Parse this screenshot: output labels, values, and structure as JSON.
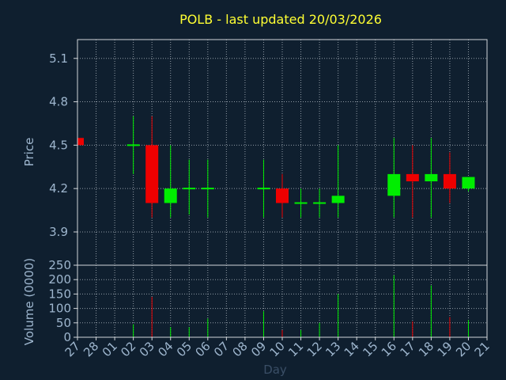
{
  "chart_data": {
    "type": "candlestick",
    "title": "POLB - last updated 20/03/2026",
    "xlabel": "Day",
    "price_panel": {
      "ylabel": "Price",
      "ylim": [
        3.67,
        5.23
      ],
      "yticks": [
        "5.1",
        "4.8",
        "4.5",
        "4.2",
        "3.9"
      ],
      "ytick_values": [
        5.1,
        4.8,
        4.5,
        4.2,
        3.9
      ]
    },
    "volume_panel": {
      "ylabel": "Volume (0000)",
      "ylim": [
        0,
        250
      ],
      "yticks": [
        "250",
        "200",
        "150",
        "100",
        "50",
        "0"
      ],
      "ytick_values": [
        250,
        200,
        150,
        100,
        50,
        0
      ]
    },
    "x_ticks": [
      "27",
      "28",
      "01",
      "02",
      "03",
      "04",
      "05",
      "06",
      "07",
      "08",
      "09",
      "10",
      "11",
      "12",
      "13",
      "14",
      "15",
      "16",
      "17",
      "18",
      "19",
      "20",
      "21"
    ],
    "candles": [
      {
        "x": 0,
        "open": 4.55,
        "close": 4.5,
        "high": 4.55,
        "low": 4.5,
        "volume": 0
      },
      {
        "x": 3,
        "open": 4.5,
        "close": 4.5,
        "high": 4.7,
        "low": 4.3,
        "volume": 45
      },
      {
        "x": 4,
        "open": 4.5,
        "close": 4.1,
        "high": 4.7,
        "low": 4.0,
        "volume": 140
      },
      {
        "x": 5,
        "open": 4.1,
        "close": 4.2,
        "high": 4.5,
        "low": 4.0,
        "volume": 35
      },
      {
        "x": 6,
        "open": 4.2,
        "close": 4.2,
        "high": 4.4,
        "low": 4.02,
        "volume": 35
      },
      {
        "x": 7,
        "open": 4.2,
        "close": 4.2,
        "high": 4.4,
        "low": 4.0,
        "volume": 65
      },
      {
        "x": 10,
        "open": 4.2,
        "close": 4.2,
        "high": 4.4,
        "low": 4.0,
        "volume": 90
      },
      {
        "x": 11,
        "open": 4.2,
        "close": 4.1,
        "high": 4.3,
        "low": 4.0,
        "volume": 25
      },
      {
        "x": 12,
        "open": 4.1,
        "close": 4.1,
        "high": 4.2,
        "low": 4.0,
        "volume": 25
      },
      {
        "x": 13,
        "open": 4.1,
        "close": 4.1,
        "high": 4.2,
        "low": 4.0,
        "volume": 50
      },
      {
        "x": 14,
        "open": 4.1,
        "close": 4.15,
        "high": 4.5,
        "low": 4.0,
        "volume": 150
      },
      {
        "x": 17,
        "open": 4.15,
        "close": 4.3,
        "high": 4.55,
        "low": 4.0,
        "volume": 215
      },
      {
        "x": 18,
        "open": 4.3,
        "close": 4.25,
        "high": 4.5,
        "low": 4.0,
        "volume": 55
      },
      {
        "x": 19,
        "open": 4.25,
        "close": 4.3,
        "high": 4.55,
        "low": 4.0,
        "volume": 180
      },
      {
        "x": 20,
        "open": 4.3,
        "close": 4.2,
        "high": 4.45,
        "low": 4.1,
        "volume": 70
      },
      {
        "x": 21,
        "open": 4.2,
        "close": 4.28,
        "high": 4.28,
        "low": 4.18,
        "volume": 60
      }
    ],
    "colors": {
      "background": "#0f1f2f",
      "up": "#00ee00",
      "down": "#ee0000",
      "doji": "#00ee00",
      "text": "#9eb6ce",
      "title": "#ffff33",
      "grid": "#c8d0d8",
      "frame": "#d0d4d8"
    },
    "grid": true
  }
}
